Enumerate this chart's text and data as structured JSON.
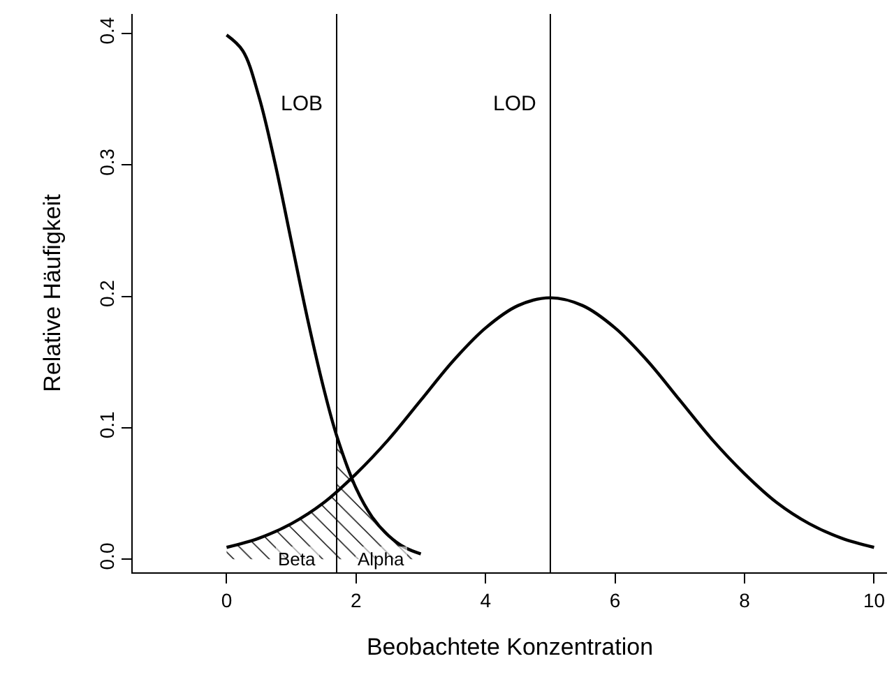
{
  "chart_data": {
    "type": "line",
    "xlabel": "Beobachtete Konzentration",
    "ylabel": "Relative Häufigkeit",
    "xlim": [
      -1.45,
      10.2
    ],
    "ylim": [
      -0.01,
      0.415
    ],
    "xticks": [
      0,
      2,
      4,
      6,
      8,
      10
    ],
    "yticks": [
      {
        "value": 0,
        "label": "0.0"
      },
      0.1,
      0.2,
      0.3,
      0.4
    ],
    "grid": false,
    "marker": "none",
    "line_style": "solid",
    "series": [
      {
        "color": "#000000",
        "x": [
          0,
          0.25,
          0.5,
          0.75,
          1,
          1.25,
          1.5,
          1.7,
          2,
          2.25,
          2.5,
          2.75,
          3
        ],
        "values": [
          0.399,
          0.387,
          0.352,
          0.301,
          0.242,
          0.183,
          0.13,
          0.094,
          0.054,
          0.032,
          0.018,
          0.009,
          0.004
        ]
      },
      {
        "color": "#000000",
        "x": [
          0,
          0.5,
          1,
          1.5,
          2,
          2.5,
          3,
          3.5,
          4,
          4.5,
          5,
          5.5,
          6,
          6.5,
          7,
          7.5,
          8,
          8.5,
          9,
          9.5,
          10
        ],
        "values": [
          0.009,
          0.016,
          0.027,
          0.043,
          0.065,
          0.091,
          0.121,
          0.151,
          0.176,
          0.193,
          0.199,
          0.193,
          0.176,
          0.151,
          0.121,
          0.091,
          0.065,
          0.043,
          0.027,
          0.016,
          0.009
        ]
      },
      {
        "type": "area",
        "color": "#000000",
        "x": [
          0,
          0.5,
          1,
          1.5,
          1.7
        ],
        "values": [
          0.009,
          0.016,
          0.027,
          0.043,
          0.051
        ]
      },
      {
        "type": "area",
        "color": "#000000",
        "x": [
          1.7,
          2,
          2.25,
          2.5,
          2.75,
          3
        ],
        "values": [
          0.094,
          0.054,
          0.032,
          0.018,
          0.009,
          0.004
        ]
      }
    ],
    "ref_lines": [
      {
        "axis": "x",
        "value": 1.7,
        "label": "LOB"
      },
      {
        "axis": "x",
        "value": 5,
        "label": "LOD"
      }
    ],
    "annotations": [
      {
        "text": "Beta",
        "x": 1.1,
        "y": 0
      },
      {
        "text": "Alpha",
        "x": 2.4,
        "y": 0
      }
    ]
  }
}
